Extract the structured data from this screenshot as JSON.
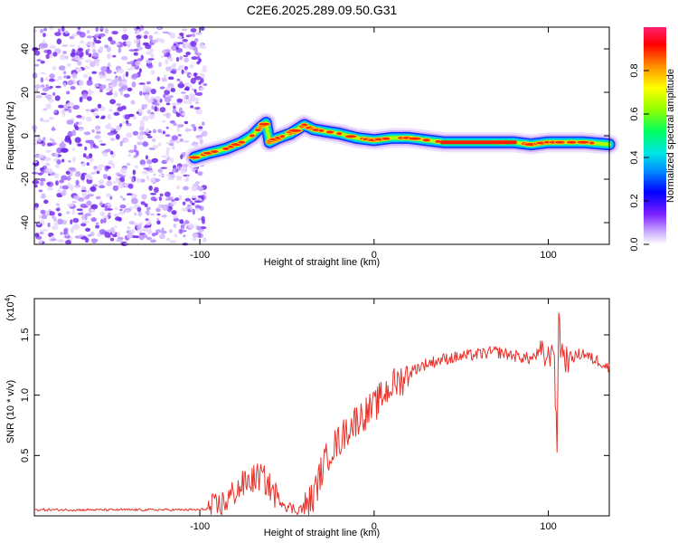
{
  "title": "C2E6.2025.289.09.50.G31",
  "chart_data": [
    {
      "type": "heatmap",
      "title": "C2E6.2025.289.09.50.G31",
      "xlabel": "Height of straight line (km)",
      "ylabel": "Frequency (Hz)",
      "xlim": [
        -195,
        135
      ],
      "ylim": [
        -50,
        50
      ],
      "xticks": [
        -100,
        0,
        100
      ],
      "yticks": [
        -40,
        -20,
        0,
        20,
        40
      ],
      "noise_region_x": [
        -195,
        -97
      ],
      "trace": {
        "x": [
          -103,
          -95,
          -85,
          -76,
          -70,
          -65,
          -62,
          -60,
          -55,
          -48,
          -44,
          -40,
          -35,
          -28,
          -20,
          -10,
          0,
          10,
          20,
          30,
          40,
          60,
          80,
          90,
          100,
          110,
          120,
          135
        ],
        "y": [
          -10,
          -8,
          -6,
          -3,
          0,
          4,
          6,
          -3,
          -1,
          1,
          3,
          5,
          3,
          2,
          1,
          -1,
          -2,
          -1,
          -1,
          -2,
          -3,
          -3,
          -3,
          -4,
          -3,
          -3,
          -3,
          -4
        ]
      },
      "colorbar": {
        "label": "Normalized spectral amplitude",
        "ticks": [
          "0.0",
          "0.2",
          "0.4",
          "0.6",
          "0.8"
        ],
        "range": [
          0,
          1
        ]
      }
    },
    {
      "type": "line",
      "xlabel": "Height of straight line (km)",
      "ylabel": "SNR (10 * v/v)",
      "multiplier_label": "(x10",
      "multiplier_exp": "4",
      "xlim": [
        -195,
        135
      ],
      "ylim": [
        0,
        1.8
      ],
      "xticks": [
        -100,
        0,
        100
      ],
      "yticks": [
        "0.5",
        "1.0",
        "1.5"
      ],
      "series": [
        {
          "name": "SNR",
          "color": "#e8312a",
          "x": [
            -195,
            -150,
            -100,
            -90,
            -85,
            -80,
            -75,
            -70,
            -65,
            -62,
            -58,
            -55,
            -50,
            -45,
            -40,
            -35,
            -30,
            -25,
            -20,
            -15,
            -10,
            -5,
            0,
            5,
            10,
            15,
            20,
            25,
            30,
            40,
            50,
            60,
            70,
            80,
            90,
            95,
            100,
            103,
            105,
            106,
            107,
            110,
            115,
            120,
            125,
            130,
            135
          ],
          "y": [
            0.05,
            0.05,
            0.05,
            0.07,
            0.12,
            0.2,
            0.26,
            0.3,
            0.33,
            0.28,
            0.2,
            0.15,
            0.08,
            0.05,
            0.07,
            0.15,
            0.38,
            0.55,
            0.62,
            0.72,
            0.8,
            0.85,
            0.9,
            1.0,
            1.08,
            1.12,
            1.18,
            1.23,
            1.26,
            1.3,
            1.32,
            1.34,
            1.36,
            1.33,
            1.3,
            1.35,
            1.3,
            1.45,
            0.52,
            1.75,
            1.4,
            1.3,
            1.32,
            1.35,
            1.3,
            1.28,
            1.22
          ]
        }
      ]
    }
  ]
}
